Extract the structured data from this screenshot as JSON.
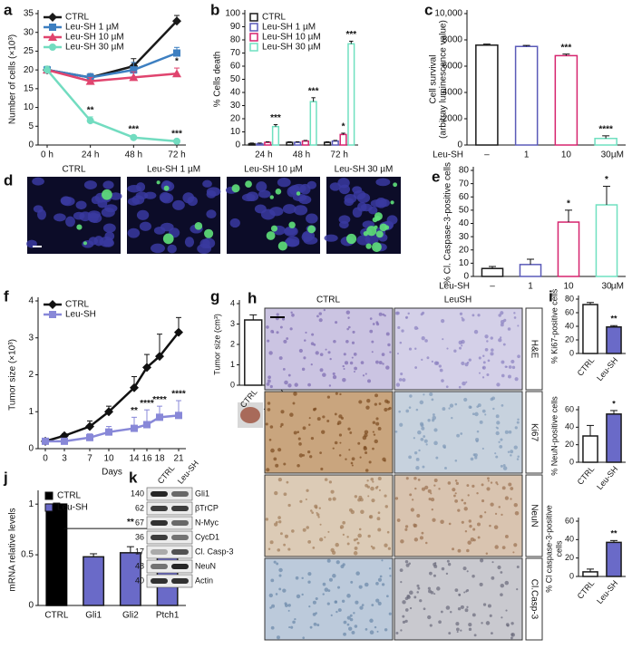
{
  "chart_data": [
    {
      "panel": "a",
      "type": "line",
      "categories": [
        "0 h",
        "24 h",
        "48 h",
        "72 h"
      ],
      "y_label": "Number of cells (×10³)",
      "ylim": [
        0,
        35
      ],
      "yticks": [
        0,
        5,
        10,
        15,
        20,
        25,
        30,
        35
      ],
      "legend": "upper-left",
      "series": [
        {
          "name": "CTRL",
          "color": "#1a1a1a",
          "marker": "diamond",
          "values": [
            20,
            18,
            21,
            33
          ],
          "errors": [
            1,
            1,
            2,
            1.5
          ]
        },
        {
          "name": "Leu-SH 1 µM",
          "color": "#3d7fc1",
          "marker": "square",
          "values": [
            20,
            18,
            20,
            24.5
          ],
          "errors": [
            1,
            1,
            2,
            1.5
          ]
        },
        {
          "name": "Leu-SH 10 µM",
          "color": "#e0446e",
          "marker": "triangle",
          "values": [
            20,
            17,
            18,
            19
          ],
          "errors": [
            1,
            1,
            1.5,
            1.5
          ],
          "labels": [
            null,
            null,
            null,
            "*"
          ]
        },
        {
          "name": "Leu-SH 30 µM",
          "color": "#72dcc0",
          "marker": "circle",
          "values": [
            20,
            6.5,
            2,
            1
          ],
          "errors": [
            1,
            1,
            0.5,
            0.3
          ],
          "labels": [
            null,
            "**",
            "***",
            "***"
          ]
        }
      ]
    },
    {
      "panel": "b",
      "type": "bar",
      "categories": [
        "24 h",
        "48 h",
        "72 h"
      ],
      "y_label": "% Cells death",
      "ylim": [
        0,
        100
      ],
      "yticks": [
        0,
        10,
        20,
        30,
        40,
        50,
        60,
        70,
        80,
        90,
        100
      ],
      "legend": "upper-left",
      "series": [
        {
          "name": "CTRL",
          "color": "#1a1a1a",
          "fill": "#ffffff",
          "values": [
            1,
            2,
            2
          ],
          "errors": [
            0.5,
            0.5,
            0.5
          ]
        },
        {
          "name": "Leu-SH 1 µM",
          "color": "#5a5ab8",
          "fill": "#ffffff",
          "values": [
            1,
            2,
            3
          ],
          "errors": [
            0.5,
            0.5,
            0.5
          ]
        },
        {
          "name": "Leu-SH 10 µM",
          "color": "#d6246e",
          "fill": "#ffffff",
          "values": [
            2,
            3,
            8
          ],
          "errors": [
            0.5,
            0.5,
            1
          ],
          "labels": [
            null,
            null,
            "*"
          ]
        },
        {
          "name": "Leu-SH 30 µM",
          "color": "#6fe0c0",
          "fill": "#ffffff",
          "values": [
            14,
            33,
            77
          ],
          "errors": [
            1.5,
            3,
            2
          ],
          "labels": [
            "***",
            "***",
            "***"
          ]
        }
      ]
    },
    {
      "panel": "c",
      "type": "bar",
      "categories": [
        "–",
        "1",
        "10",
        "30"
      ],
      "x_label": "Leu-SH",
      "x_unit": "µM",
      "y_label": [
        "Cell survival",
        "(arbitray luminescence value)"
      ],
      "ylim": [
        0,
        10000
      ],
      "yticks": [
        0,
        2000,
        4000,
        6000,
        8000,
        {
          "value": 10000,
          "label": "10,000"
        }
      ],
      "values": [
        7600,
        7500,
        6800,
        500
      ],
      "errors": [
        80,
        80,
        120,
        200
      ],
      "colors": [
        "#1a1a1a",
        "#5a5ab8",
        "#d6246e",
        "#6fe0c0"
      ],
      "fills": [
        "#ffffff",
        "#ffffff",
        "#ffffff",
        "#ffffff"
      ],
      "labels": [
        null,
        null,
        "***",
        "****"
      ]
    },
    {
      "panel": "e",
      "type": "bar",
      "categories": [
        "–",
        "1",
        "10",
        "30"
      ],
      "x_label": "Leu-SH",
      "x_unit": "µM",
      "y_label": "% Cl. Caspase-3-positive cells",
      "ylim": [
        0,
        80
      ],
      "yticks": [
        0,
        10,
        20,
        30,
        40,
        50,
        60,
        70,
        80
      ],
      "values": [
        6,
        9,
        41,
        54
      ],
      "errors": [
        1.5,
        4,
        9,
        14
      ],
      "colors": [
        "#1a1a1a",
        "#5a5ab8",
        "#d6246e",
        "#6fe0c0"
      ],
      "fills": [
        "#ffffff",
        "#ffffff",
        "#ffffff",
        "#ffffff"
      ],
      "labels": [
        null,
        null,
        "*",
        "*"
      ]
    },
    {
      "panel": "f",
      "type": "line",
      "x": [
        0,
        3,
        7,
        10,
        14,
        16,
        18,
        21
      ],
      "xlim": [
        0,
        21
      ],
      "xticks": [
        0,
        3,
        7,
        10,
        14,
        16,
        18,
        21
      ],
      "x_label": "Days",
      "y_label": "Tumor size (×10³)",
      "ylim": [
        0,
        4
      ],
      "yticks": [
        0,
        1,
        2,
        3,
        4
      ],
      "legend": "upper-left",
      "series": [
        {
          "name": "CTRL",
          "color": "#111111",
          "marker": "diamond",
          "values": [
            0.2,
            0.35,
            0.6,
            1.0,
            1.65,
            2.2,
            2.5,
            3.15
          ],
          "errors": [
            0.05,
            0.05,
            0.15,
            0.15,
            0.3,
            0.35,
            0.6,
            0.4
          ]
        },
        {
          "name": "Leu-SH",
          "color": "#8888d8",
          "marker": "square",
          "values": [
            0.2,
            0.2,
            0.3,
            0.45,
            0.55,
            0.65,
            0.85,
            0.9
          ],
          "errors": [
            0.05,
            0.05,
            0.1,
            0.15,
            0.3,
            0.4,
            0.3,
            0.4
          ],
          "labels": [
            null,
            null,
            null,
            null,
            "**",
            "****",
            "****",
            "****"
          ]
        }
      ]
    },
    {
      "panel": "g",
      "type": "bar",
      "categories": [
        "CTRL",
        "Leu-SH"
      ],
      "rotate_labels": true,
      "y_label": "Tumor size (cm³)",
      "ylim": [
        0,
        4
      ],
      "yticks": [
        0,
        1,
        2,
        3,
        4
      ],
      "values": [
        3.2,
        0.85
      ],
      "errors": [
        0.25,
        0.2
      ],
      "colors": [
        "#1a1a1a",
        "#1a1a1a"
      ],
      "fills": [
        "#ffffff",
        "#6a6ac8"
      ],
      "labels": [
        null,
        "***"
      ]
    },
    {
      "panel": "i",
      "type": "bar",
      "categories": [
        "CTRL",
        "Leu-SH"
      ],
      "rotate_labels": true,
      "y_label": "% Ki67-positive cells",
      "ylim": [
        0,
        80
      ],
      "yticks": [
        0,
        20,
        40,
        60,
        80
      ],
      "values": [
        72,
        39
      ],
      "errors": [
        3,
        2
      ],
      "colors": [
        "#1a1a1a",
        "#1a1a1a"
      ],
      "fills": [
        "#ffffff",
        "#6a6ac8"
      ],
      "labels": [
        null,
        "**"
      ]
    },
    {
      "type": "bar",
      "categories": [
        "CTRL",
        "Leu-SH"
      ],
      "rotate_labels": true,
      "y_label": "% NeuN-positive cells",
      "ylim": [
        0,
        60
      ],
      "yticks": [
        0,
        20,
        40,
        60
      ],
      "values": [
        30,
        55
      ],
      "errors": [
        12,
        4
      ],
      "colors": [
        "#1a1a1a",
        "#1a1a1a"
      ],
      "fills": [
        "#ffffff",
        "#6a6ac8"
      ],
      "labels": [
        null,
        "*"
      ]
    },
    {
      "type": "bar",
      "categories": [
        "CTRL",
        "Leu-SH"
      ],
      "rotate_labels": true,
      "y_label": [
        "% Cl caspase-3-positive",
        "cells"
      ],
      "ylim": [
        0,
        60
      ],
      "yticks": [
        0,
        20,
        40,
        60
      ],
      "values": [
        5,
        37
      ],
      "errors": [
        3,
        2
      ],
      "colors": [
        "#1a1a1a",
        "#1a1a1a"
      ],
      "fills": [
        "#ffffff",
        "#6a6ac8"
      ],
      "labels": [
        null,
        "**"
      ]
    },
    {
      "panel": "j",
      "type": "bar",
      "categories": [
        "CTRL",
        "Gli1",
        "Gli2",
        "Ptch1"
      ],
      "y_label": "mRNA relative levels",
      "ylim": [
        0,
        1.1
      ],
      "yticks": [
        0,
        0.5,
        1
      ],
      "values": [
        1,
        0.48,
        0.52,
        0.47
      ],
      "errors": [
        0.01,
        0.03,
        0.06,
        0.04
      ],
      "colors": [
        "#000000",
        "#1a1a1a",
        "#1a1a1a",
        "#1a1a1a"
      ],
      "fills": [
        "#000000",
        "#6a6ac8",
        "#6a6ac8",
        "#6a6ac8"
      ],
      "legend": [
        {
          "name": "CTRL",
          "color": "#000000"
        },
        {
          "name": "Leu-SH",
          "color": "#6a6ac8"
        }
      ],
      "bracket_label": "**"
    }
  ],
  "panel_d": {
    "letter": "d",
    "images": [
      "CTRL",
      "Leu-SH 1 µM",
      "Leu-SH 10 µM",
      "Leu-SH 30 µM"
    ]
  },
  "panel_h": {
    "letter": "h",
    "columns": [
      "CTRL",
      "LeuSH"
    ],
    "rows": [
      "H&E",
      "Ki67",
      "NeuN",
      "Cl.Casp-3"
    ]
  },
  "panel_k": {
    "letter": "k",
    "lanes": [
      "CTRL",
      "Leu-SH"
    ],
    "bands": [
      {
        "mw": "140",
        "name": "Gli1"
      },
      {
        "mw": "62",
        "name": "βTrCP"
      },
      {
        "mw": "67",
        "name": "N-Myc"
      },
      {
        "mw": "36",
        "name": "CycD1"
      },
      {
        "mw": "17",
        "name": "Cl. Casp-3"
      },
      {
        "mw": "48",
        "name": "NeuN"
      },
      {
        "mw": "40",
        "name": "Actin"
      }
    ]
  }
}
